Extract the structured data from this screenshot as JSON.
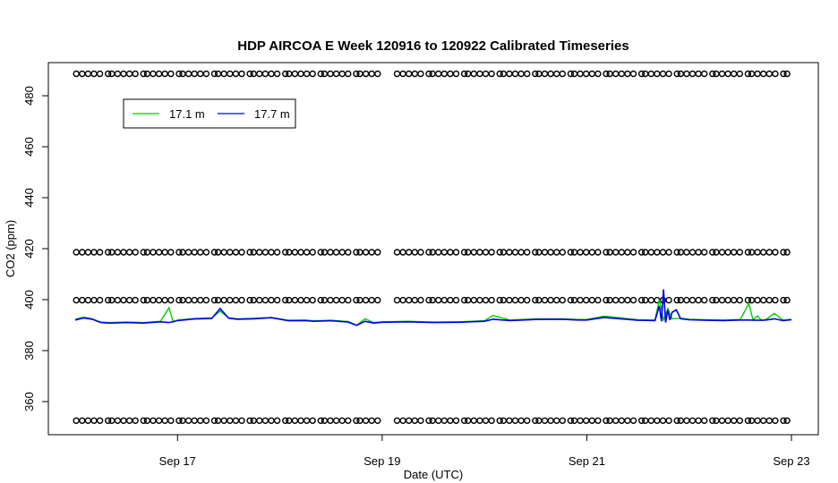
{
  "chart_data": {
    "type": "line",
    "title": "HDP AIRCOA E  Week 120916 to 120922  Calibrated Timeseries",
    "xlabel": "Date (UTC)",
    "ylabel": "CO2 (ppm)",
    "xlim": [
      "2012-09-16T00:00",
      "2012-09-23T00:00"
    ],
    "ylim": [
      347,
      493
    ],
    "x_ticks": [
      {
        "label": "Sep 17",
        "date": "2012-09-17T00:00"
      },
      {
        "label": "Sep 19",
        "date": "2012-09-19T00:00"
      },
      {
        "label": "Sep 21",
        "date": "2012-09-21T00:00"
      },
      {
        "label": "Sep 23",
        "date": "2012-09-23T00:00"
      }
    ],
    "y_ticks": [
      360,
      380,
      400,
      420,
      440,
      460,
      480
    ],
    "legend": {
      "placement": "top-left",
      "entries": [
        "17.1 m",
        "17.7 m"
      ]
    },
    "grid": false,
    "calibration_standards": {
      "marker": "open-circle",
      "levels": [
        352.5,
        399.8,
        418.6,
        488.6
      ],
      "ranges": [
        [
          "2012-09-16T00:15",
          "2012-09-19T00:00"
        ],
        [
          "2012-09-19T03:30",
          "2012-09-23T00:00"
        ]
      ]
    },
    "series": [
      {
        "name": "17.1 m",
        "color": "#00cc00",
        "x": [
          "2012-09-16T00:00",
          "2012-09-16T02:00",
          "2012-09-16T04:00",
          "2012-09-16T06:00",
          "2012-09-16T08:00",
          "2012-09-16T12:00",
          "2012-09-16T16:00",
          "2012-09-16T20:00",
          "2012-09-16T22:00",
          "2012-09-16T23:00",
          "2012-09-17T00:00",
          "2012-09-17T04:00",
          "2012-09-17T08:00",
          "2012-09-17T10:00",
          "2012-09-17T12:00",
          "2012-09-17T14:00",
          "2012-09-17T18:00",
          "2012-09-17T22:00",
          "2012-09-18T02:00",
          "2012-09-18T06:00",
          "2012-09-18T08:00",
          "2012-09-18T12:00",
          "2012-09-18T16:00",
          "2012-09-18T18:00",
          "2012-09-18T20:00",
          "2012-09-18T22:00",
          "2012-09-19T00:00",
          "2012-09-19T06:00",
          "2012-09-19T12:00",
          "2012-09-19T18:00",
          "2012-09-20T00:00",
          "2012-09-20T02:00",
          "2012-09-20T06:00",
          "2012-09-20T12:00",
          "2012-09-20T18:00",
          "2012-09-20T22:00",
          "2012-09-21T00:00",
          "2012-09-21T04:00",
          "2012-09-21T08:00",
          "2012-09-21T12:00",
          "2012-09-21T16:00",
          "2012-09-21T17:00",
          "2012-09-21T18:00",
          "2012-09-21T19:00",
          "2012-09-21T20:00",
          "2012-09-21T22:00",
          "2012-09-22T00:00",
          "2012-09-22T04:00",
          "2012-09-22T08:00",
          "2012-09-22T12:00",
          "2012-09-22T14:00",
          "2012-09-22T15:00",
          "2012-09-22T16:00",
          "2012-09-22T17:00",
          "2012-09-22T18:00",
          "2012-09-22T20:00",
          "2012-09-22T22:00",
          "2012-09-23T00:00"
        ],
        "values": [
          392.3,
          393.1,
          392.5,
          391.2,
          391.0,
          391.2,
          391.0,
          391.5,
          396.8,
          391.2,
          392.0,
          392.6,
          392.8,
          395.5,
          392.9,
          392.5,
          392.7,
          393.0,
          391.9,
          392.0,
          391.7,
          391.9,
          391.4,
          390.0,
          392.5,
          391.0,
          391.3,
          391.5,
          391.2,
          391.3,
          391.7,
          393.8,
          392.0,
          392.5,
          392.5,
          392.2,
          392.2,
          393.5,
          392.8,
          392.1,
          392.0,
          400.0,
          392.0,
          396.5,
          392.5,
          392.7,
          392.3,
          392.1,
          392.0,
          392.2,
          398.5,
          392.0,
          393.6,
          391.8,
          392.2,
          394.6,
          392.0,
          392.3
        ]
      },
      {
        "name": "17.7 m",
        "color": "#0000ee",
        "x": [
          "2012-09-16T00:00",
          "2012-09-16T02:00",
          "2012-09-16T04:00",
          "2012-09-16T06:00",
          "2012-09-16T08:00",
          "2012-09-16T12:00",
          "2012-09-16T16:00",
          "2012-09-16T20:00",
          "2012-09-16T22:00",
          "2012-09-17T00:00",
          "2012-09-17T04:00",
          "2012-09-17T08:00",
          "2012-09-17T10:00",
          "2012-09-17T12:00",
          "2012-09-17T14:00",
          "2012-09-17T18:00",
          "2012-09-17T22:00",
          "2012-09-18T02:00",
          "2012-09-18T06:00",
          "2012-09-18T08:00",
          "2012-09-18T12:00",
          "2012-09-18T16:00",
          "2012-09-18T18:00",
          "2012-09-18T20:00",
          "2012-09-18T22:00",
          "2012-09-19T00:00",
          "2012-09-19T06:00",
          "2012-09-19T12:00",
          "2012-09-19T18:00",
          "2012-09-20T00:00",
          "2012-09-20T02:00",
          "2012-09-20T06:00",
          "2012-09-20T12:00",
          "2012-09-20T18:00",
          "2012-09-20T22:00",
          "2012-09-21T00:00",
          "2012-09-21T04:00",
          "2012-09-21T08:00",
          "2012-09-21T12:00",
          "2012-09-21T16:00",
          "2012-09-21T17:00",
          "2012-09-21T17:30",
          "2012-09-21T18:00",
          "2012-09-21T18:30",
          "2012-09-21T19:00",
          "2012-09-21T19:30",
          "2012-09-21T20:00",
          "2012-09-21T21:00",
          "2012-09-21T22:00",
          "2012-09-22T00:00",
          "2012-09-22T04:00",
          "2012-09-22T08:00",
          "2012-09-22T12:00",
          "2012-09-22T14:00",
          "2012-09-22T16:00",
          "2012-09-22T18:00",
          "2012-09-22T20:00",
          "2012-09-22T22:00",
          "2012-09-23T00:00"
        ],
        "values": [
          392.0,
          392.8,
          392.3,
          391.0,
          390.8,
          391.0,
          390.8,
          391.3,
          391.0,
          391.8,
          392.4,
          392.6,
          396.5,
          392.7,
          392.3,
          392.5,
          392.9,
          391.7,
          391.8,
          391.5,
          391.7,
          391.2,
          389.9,
          391.5,
          390.8,
          391.1,
          391.3,
          391.0,
          391.1,
          391.5,
          392.3,
          391.8,
          392.2,
          392.3,
          392.0,
          392.0,
          393.0,
          392.5,
          391.9,
          391.8,
          397.5,
          391.5,
          404.0,
          391.0,
          396.0,
          392.0,
          395.0,
          396.0,
          392.5,
          392.1,
          391.9,
          391.8,
          392.0,
          392.0,
          391.9,
          392.0,
          392.5,
          391.8,
          392.1
        ]
      }
    ]
  }
}
